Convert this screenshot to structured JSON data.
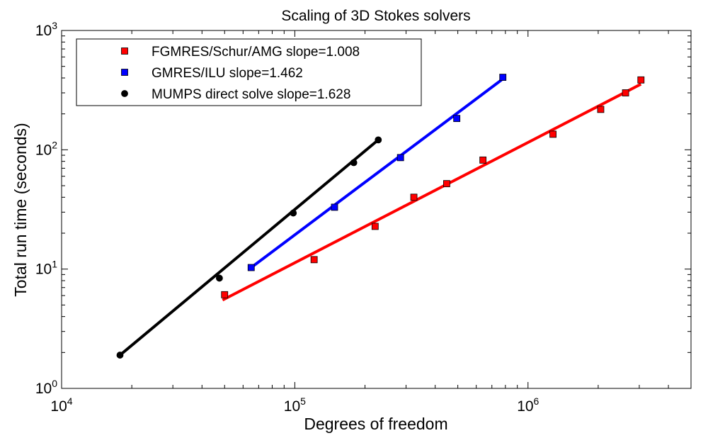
{
  "chart_data": {
    "type": "scatter",
    "title": "Scaling of 3D Stokes solvers",
    "xlabel": "Degrees of freedom",
    "ylabel": "Total run time (seconds)",
    "xscale": "log",
    "yscale": "log",
    "xlim": [
      10000,
      5000000
    ],
    "ylim": [
      1,
      1000
    ],
    "x_ticks": [
      {
        "value": 10000,
        "base": "10",
        "exp": "4"
      },
      {
        "value": 100000,
        "base": "10",
        "exp": "5"
      },
      {
        "value": 1000000,
        "base": "10",
        "exp": "6"
      }
    ],
    "y_ticks": [
      {
        "value": 1,
        "base": "10",
        "exp": "0"
      },
      {
        "value": 10,
        "base": "10",
        "exp": "1"
      },
      {
        "value": 100,
        "base": "10",
        "exp": "2"
      },
      {
        "value": 1000,
        "base": "10",
        "exp": "3"
      }
    ],
    "grid": false,
    "legend_position": "top-left",
    "series": [
      {
        "name": "FGMRES/Schur/AMG slope=1.008",
        "color": "#ff0000",
        "marker": "square",
        "x": [
          50000,
          121000,
          221000,
          324000,
          448000,
          641000,
          1280000,
          2050000,
          2620000,
          3050000
        ],
        "y": [
          6.1,
          12.0,
          22.8,
          40.0,
          52.0,
          82.0,
          135.0,
          218.0,
          300.0,
          385.0
        ],
        "fit": {
          "x": [
            49000,
            3050000
          ],
          "y": [
            5.5,
            355.0
          ]
        }
      },
      {
        "name": "GMRES/ILU slope=1.462",
        "color": "#0000ff",
        "marker": "square",
        "x": [
          65000,
          148000,
          284000,
          495000,
          780000
        ],
        "y": [
          10.3,
          33.0,
          86.0,
          183.0,
          405.0
        ],
        "fit": {
          "x": [
            65000,
            770000
          ],
          "y": [
            10.3,
            385.0
          ]
        }
      },
      {
        "name": "MUMPS direct solve slope=1.628",
        "color": "#000000",
        "marker": "circle",
        "x": [
          17800,
          47500,
          98500,
          179000,
          228000
        ],
        "y": [
          1.9,
          8.4,
          29.5,
          78.0,
          121.0
        ],
        "fit": {
          "x": [
            17800,
            228000
          ],
          "y": [
            1.9,
            121.0
          ]
        }
      }
    ]
  }
}
